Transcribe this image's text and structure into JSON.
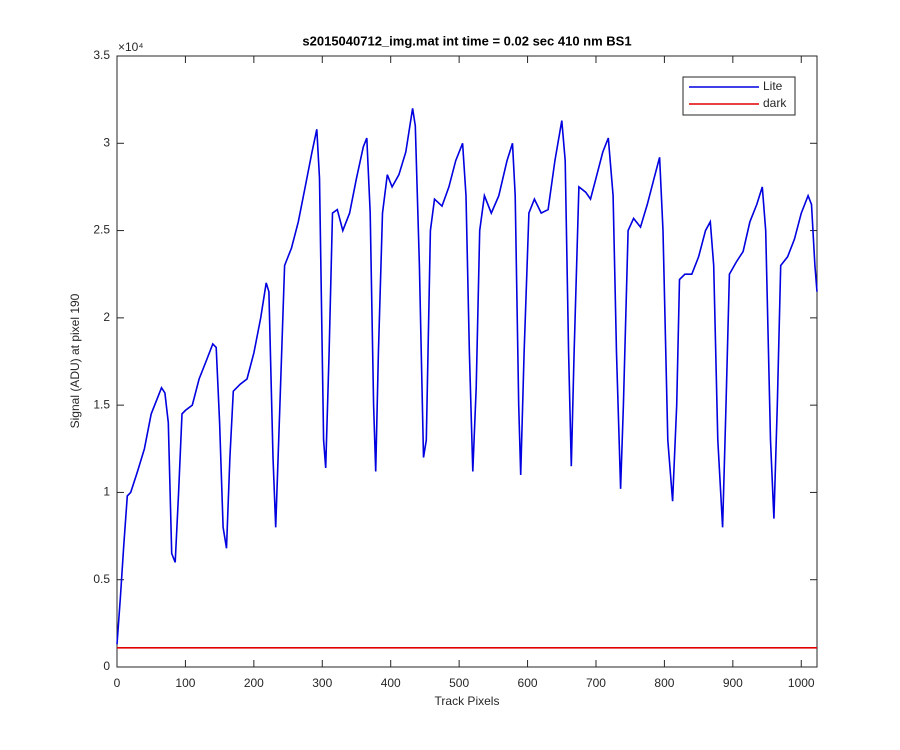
{
  "chart_data": {
    "type": "line",
    "title": "s2015040712_img.mat int time = 0.02 sec  410 nm BS1",
    "x_label": "Track Pixels",
    "y_label": "Signal (ADU) at pixel 190",
    "y_multiplier": "×10⁴",
    "xlim": [
      0,
      1023
    ],
    "ylim": [
      0,
      3.5
    ],
    "xticks": [
      0,
      100,
      200,
      300,
      400,
      500,
      600,
      700,
      800,
      900,
      1000
    ],
    "yticks": [
      0,
      0.5,
      1,
      1.5,
      2,
      2.5,
      3,
      3.5
    ],
    "legend": "top-right",
    "series": [
      {
        "name": "Lite",
        "color": "#0000e0",
        "x": [
          0,
          5,
          10,
          15,
          20,
          30,
          40,
          50,
          60,
          65,
          70,
          75,
          80,
          85,
          90,
          95,
          100,
          110,
          120,
          130,
          140,
          145,
          150,
          155,
          160,
          165,
          170,
          180,
          190,
          200,
          210,
          218,
          222,
          228,
          232,
          238,
          245,
          255,
          265,
          275,
          285,
          292,
          296,
          302,
          305,
          310,
          315,
          322,
          330,
          340,
          350,
          360,
          365,
          370,
          375,
          378,
          382,
          388,
          395,
          402,
          412,
          422,
          432,
          436,
          442,
          448,
          452,
          458,
          464,
          475,
          485,
          495,
          505,
          510,
          515,
          520,
          525,
          530,
          537,
          547,
          558,
          570,
          578,
          582,
          587,
          590,
          595,
          602,
          610,
          620,
          630,
          640,
          650,
          655,
          660,
          664,
          668,
          675,
          685,
          692,
          700,
          710,
          718,
          725,
          730,
          736,
          740,
          747,
          755,
          765,
          775,
          785,
          793,
          798,
          805,
          812,
          818,
          822,
          830,
          840,
          850,
          860,
          867,
          872,
          878,
          885,
          890,
          895,
          905,
          915,
          925,
          935,
          943,
          948,
          955,
          960,
          965,
          970,
          980,
          990,
          1000,
          1010,
          1015,
          1020,
          1023
        ],
        "values": [
          0.13,
          0.4,
          0.7,
          0.98,
          1.0,
          1.12,
          1.25,
          1.45,
          1.55,
          1.6,
          1.57,
          1.4,
          0.65,
          0.6,
          1.0,
          1.45,
          1.47,
          1.5,
          1.65,
          1.75,
          1.85,
          1.83,
          1.4,
          0.8,
          0.68,
          1.2,
          1.58,
          1.62,
          1.65,
          1.8,
          2.0,
          2.2,
          2.15,
          1.2,
          0.8,
          1.5,
          2.3,
          2.4,
          2.55,
          2.75,
          2.95,
          3.08,
          2.8,
          1.3,
          1.14,
          1.8,
          2.6,
          2.62,
          2.5,
          2.6,
          2.8,
          2.98,
          3.03,
          2.6,
          1.5,
          1.12,
          1.8,
          2.6,
          2.82,
          2.75,
          2.82,
          2.95,
          3.2,
          3.1,
          2.3,
          1.2,
          1.3,
          2.5,
          2.68,
          2.64,
          2.75,
          2.9,
          3.0,
          2.7,
          1.8,
          1.12,
          1.6,
          2.5,
          2.7,
          2.6,
          2.7,
          2.9,
          3.0,
          2.7,
          1.5,
          1.1,
          1.8,
          2.6,
          2.68,
          2.6,
          2.62,
          2.9,
          3.13,
          2.9,
          1.8,
          1.15,
          1.8,
          2.75,
          2.72,
          2.68,
          2.8,
          2.95,
          3.03,
          2.7,
          1.8,
          1.02,
          1.5,
          2.5,
          2.57,
          2.52,
          2.65,
          2.8,
          2.92,
          2.5,
          1.3,
          0.95,
          1.5,
          2.22,
          2.25,
          2.25,
          2.35,
          2.5,
          2.55,
          2.3,
          1.3,
          0.8,
          1.5,
          2.25,
          2.32,
          2.38,
          2.55,
          2.65,
          2.75,
          2.5,
          1.3,
          0.85,
          1.5,
          2.3,
          2.35,
          2.45,
          2.6,
          2.7,
          2.65,
          2.3,
          2.15
        ]
      },
      {
        "name": "dark",
        "color": "#e00000",
        "x": [
          0,
          1023
        ],
        "values": [
          0.11,
          0.11
        ]
      }
    ]
  }
}
